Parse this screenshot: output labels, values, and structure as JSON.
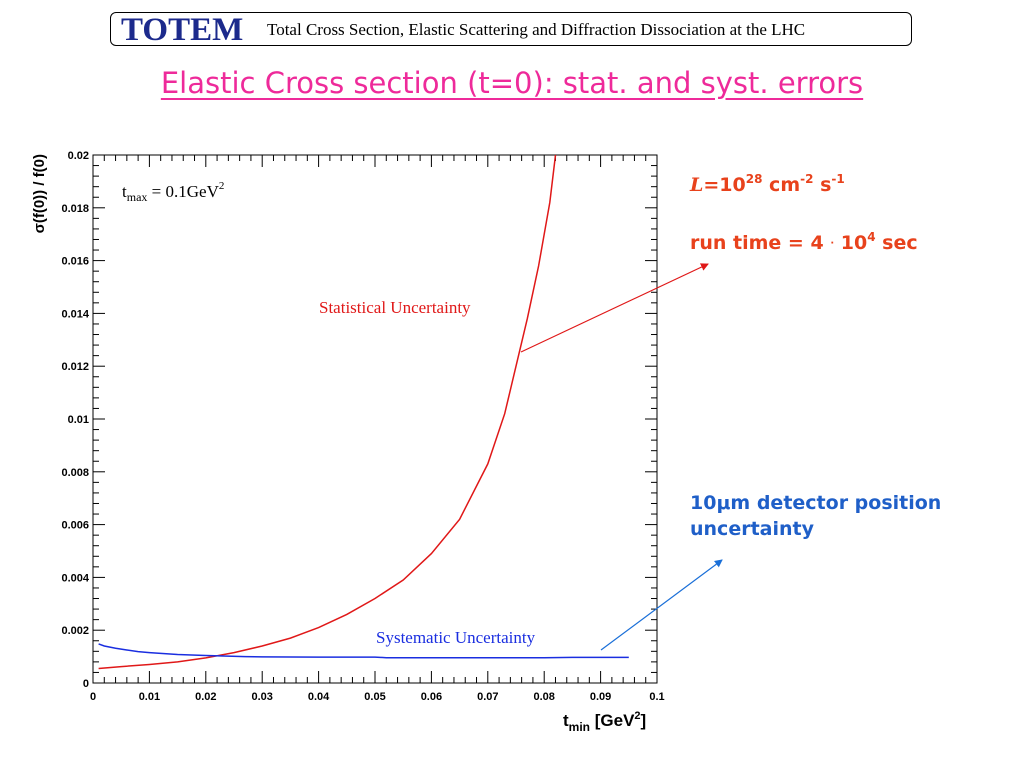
{
  "header": {
    "logo_text": "TOTEM",
    "banner_text": "Total Cross Section, Elastic Scattering and Diffraction Dissociation at the LHC"
  },
  "slide": {
    "title": "Elastic Cross section (t=0): stat. and syst. errors"
  },
  "annotations": {
    "luminosity_symbol": "L",
    "luminosity_eq": "=10",
    "luminosity_exp": "28",
    "luminosity_cm": " cm",
    "luminosity_cm_exp": "-2",
    "luminosity_s": " s",
    "luminosity_s_exp": "-1",
    "run_time_prefix": "run time = 4 ",
    "run_time_dot": "·",
    "run_time_base": " 10",
    "run_time_exp": "4",
    "run_time_unit": " sec",
    "detector_line1": "10μm detector position",
    "detector_line2": "uncertainty"
  },
  "colors": {
    "statistical": "#e01818",
    "systematic": "#1a2ee0",
    "annotation_red": "#e8421c",
    "annotation_blue": "#1f5fc8",
    "title_pink": "#ee2a9a",
    "logo_blue": "#1c2a8c"
  },
  "chart_data": {
    "type": "line",
    "ylabel": "σ(f(0)) / f(0)",
    "xlabel_main": "t",
    "xlabel_sub": "min",
    "xlabel_unit": "[GeV",
    "xlabel_unit_exp": "2",
    "xlabel_unit_close": "]",
    "xlim": [
      0,
      0.1
    ],
    "ylim": [
      0,
      0.02
    ],
    "xticks": [
      "0",
      "0.01",
      "0.02",
      "0.03",
      "0.04",
      "0.05",
      "0.06",
      "0.07",
      "0.08",
      "0.09",
      "0.1"
    ],
    "yticks": [
      "0",
      "0.002",
      "0.004",
      "0.006",
      "0.008",
      "0.01",
      "0.012",
      "0.014",
      "0.016",
      "0.018",
      "0.02"
    ],
    "annotation_tmax_main": "t",
    "annotation_tmax_sub": "max",
    "annotation_tmax_value": "= 0.1GeV",
    "annotation_tmax_exp": "2",
    "series": [
      {
        "name": "Statistical Uncertainty",
        "color": "#e01818",
        "x": [
          0.001,
          0.005,
          0.01,
          0.015,
          0.02,
          0.025,
          0.03,
          0.035,
          0.04,
          0.045,
          0.05,
          0.055,
          0.06,
          0.065,
          0.07,
          0.073,
          0.075,
          0.077,
          0.079,
          0.081,
          0.082
        ],
        "y": [
          0.00055,
          0.00062,
          0.0007,
          0.0008,
          0.00095,
          0.00115,
          0.0014,
          0.0017,
          0.0021,
          0.0026,
          0.0032,
          0.0039,
          0.0049,
          0.0062,
          0.0083,
          0.0102,
          0.012,
          0.0138,
          0.0158,
          0.0182,
          0.02
        ]
      },
      {
        "name": "Systematic Uncertainty",
        "color": "#1a2ee0",
        "x": [
          0.001,
          0.002,
          0.004,
          0.006,
          0.008,
          0.01,
          0.015,
          0.02,
          0.027,
          0.03,
          0.04,
          0.05,
          0.052,
          0.06,
          0.07,
          0.08,
          0.085,
          0.09,
          0.095
        ],
        "y": [
          0.00148,
          0.0014,
          0.00132,
          0.00125,
          0.00119,
          0.00115,
          0.00108,
          0.00104,
          0.001,
          0.00099,
          0.00098,
          0.00098,
          0.00096,
          0.00096,
          0.00096,
          0.00096,
          0.00097,
          0.00097,
          0.00097
        ]
      }
    ]
  }
}
